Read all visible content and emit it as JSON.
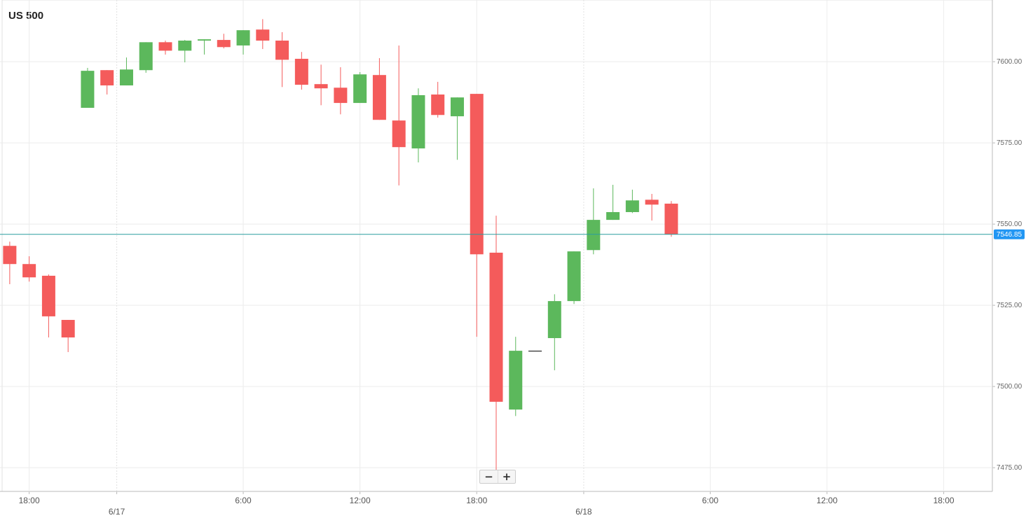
{
  "chart_data": {
    "type": "candlestick",
    "title": "US 500",
    "categories": [
      null,
      "18:00",
      null,
      null,
      null,
      null,
      null,
      null,
      null,
      null,
      null,
      null,
      "6:00",
      null,
      null,
      null,
      null,
      null,
      "12:00",
      null,
      null,
      null,
      null,
      null,
      "18:00",
      null,
      null,
      null,
      null,
      null,
      null,
      null,
      null,
      null,
      null,
      null,
      "6:00",
      null,
      null,
      null,
      null,
      null,
      "12:00",
      null,
      null,
      null,
      null,
      null,
      "18:00",
      null,
      null
    ],
    "dates": [
      null,
      null,
      null,
      null,
      null,
      null,
      "6/17",
      null,
      null,
      null,
      null,
      null,
      null,
      null,
      null,
      null,
      null,
      null,
      null,
      null,
      null,
      null,
      null,
      null,
      null,
      null,
      null,
      null,
      null,
      null,
      "6/18",
      null,
      null,
      null,
      null,
      null,
      null,
      null,
      null,
      null,
      null,
      null,
      null,
      null,
      null,
      null,
      null,
      null,
      null,
      null,
      null
    ],
    "series": [
      {
        "up_color": "#5cb85c",
        "down_color": "#f45b5b",
        "open": [
          7543.3,
          7537.7,
          7534.1,
          7520.5,
          7585.8,
          7597.4,
          7592.7,
          7597.4,
          7606.0,
          7603.4,
          7606.5,
          7606.7,
          7605.0,
          7609.9,
          7606.5,
          7600.9,
          7593.1,
          7592.0,
          7587.3,
          7595.9,
          7581.9,
          7573.3,
          7589.9,
          7583.2,
          7590.1,
          7541.2,
          7492.9,
          7511.0,
          7514.9,
          7526.3,
          7542.0,
          7551.3,
          7553.7,
          7557.5,
          7556.3,
          null,
          null,
          null,
          null,
          null,
          null,
          null,
          null,
          null,
          null,
          null,
          null,
          null,
          null,
          null,
          null
        ],
        "high": [
          7544.6,
          7540.1,
          7534.5,
          7520.5,
          7598.1,
          7597.4,
          7601.3,
          7606.0,
          7606.5,
          7606.7,
          7606.9,
          7608.6,
          7609.7,
          7613.1,
          7609.1,
          7603.0,
          7599.1,
          7598.3,
          7596.8,
          7601.1,
          7605.0,
          7591.8,
          7593.8,
          7589.0,
          7590.1,
          7552.6,
          7515.3,
          7511.0,
          7528.4,
          7541.6,
          7561.0,
          7562.1,
          7560.6,
          7559.3,
          7557.1,
          null,
          null,
          null,
          null,
          null,
          null,
          null,
          null,
          null,
          null,
          null,
          null,
          null,
          null,
          null,
          null
        ],
        "low": [
          7531.5,
          7532.3,
          7515.1,
          7510.6,
          7585.8,
          7589.9,
          7592.7,
          7596.6,
          7602.2,
          7599.8,
          7602.2,
          7604.1,
          7602.2,
          7603.9,
          7592.2,
          7591.4,
          7586.6,
          7583.8,
          7587.3,
          7582.1,
          7561.9,
          7569.0,
          7582.8,
          7569.8,
          7515.3,
          7474.1,
          7490.9,
          7511.0,
          7505.0,
          7525.4,
          7540.7,
          7551.3,
          7553.4,
          7551.1,
          7546.1,
          null,
          null,
          null,
          null,
          null,
          null,
          null,
          null,
          null,
          null,
          null,
          null,
          null,
          null,
          null,
          null
        ],
        "close": [
          7537.7,
          7533.6,
          7521.6,
          7515.1,
          7597.2,
          7592.7,
          7597.6,
          7606.0,
          7603.4,
          7606.5,
          7606.9,
          7604.5,
          7609.7,
          7606.5,
          7600.6,
          7592.9,
          7591.8,
          7587.3,
          7596.1,
          7582.1,
          7573.7,
          7589.7,
          7583.6,
          7589.0,
          7540.7,
          7495.3,
          7511.0,
          7511.0,
          7526.3,
          7541.6,
          7551.3,
          7553.7,
          7557.3,
          7556.0,
          7546.85,
          null,
          null,
          null,
          null,
          null,
          null,
          null,
          null,
          null,
          null,
          null,
          null,
          null,
          null,
          null,
          null
        ]
      }
    ],
    "ylim": [
      7467.7,
      7619.0
    ],
    "yticks": [
      {
        "value": 7475,
        "label": "7475.00"
      },
      {
        "value": 7500,
        "label": "7500.00"
      },
      {
        "value": 7525,
        "label": "7525.00"
      },
      {
        "value": 7550,
        "label": "7550.00"
      },
      {
        "value": 7575,
        "label": "7575.00"
      },
      {
        "value": 7600,
        "label": "7600.00"
      }
    ],
    "grid": true,
    "last_price": {
      "value": 7546.85,
      "label": "7546.85",
      "line_color": "#2a9d9f",
      "label_color": "#2196f3"
    }
  },
  "controls": {
    "zoom_out": "−",
    "zoom_in": "+"
  }
}
